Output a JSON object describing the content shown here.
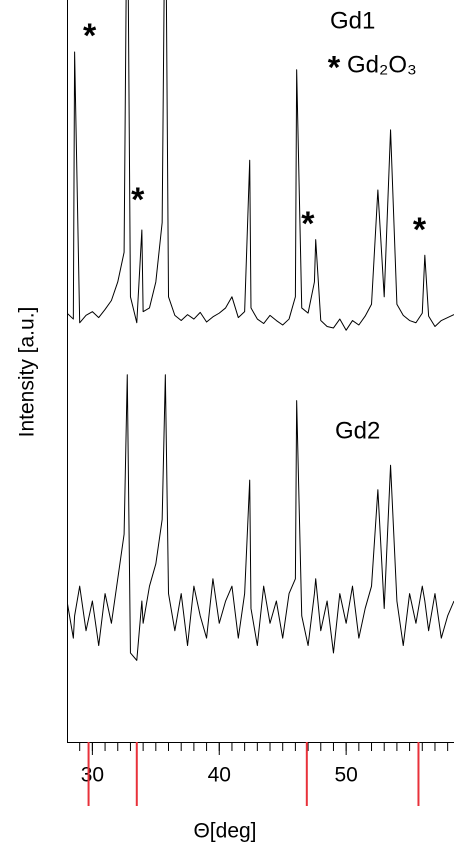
{
  "chart_data": {
    "type": "line",
    "xlabel": "Θ[deg]",
    "ylabel": "Intensity [a.u.]",
    "xlim": [
      28.0,
      58.5
    ],
    "ylim": [
      0,
      100
    ],
    "xticks": [
      30,
      40,
      50
    ],
    "xminorticks": [
      29,
      30,
      31,
      32,
      33,
      34,
      35,
      36,
      37,
      38,
      39,
      40,
      41,
      42,
      43,
      44,
      45,
      46,
      47,
      48,
      49,
      50,
      51,
      52,
      53,
      54,
      55,
      56,
      57,
      58
    ],
    "x": [
      28.0,
      28.5,
      28.6,
      29.0,
      29.5,
      30.0,
      30.5,
      31.0,
      31.5,
      32.0,
      32.5,
      32.75,
      33.0,
      33.5,
      33.9,
      34.0,
      34.5,
      35.0,
      35.5,
      35.75,
      36.0,
      36.5,
      37.0,
      37.5,
      38.0,
      38.5,
      39.0,
      39.5,
      40.0,
      40.5,
      41.0,
      41.5,
      42.0,
      42.4,
      42.5,
      43.0,
      43.5,
      44.0,
      44.5,
      45.0,
      45.5,
      46.0,
      46.1,
      46.5,
      47.0,
      47.5,
      47.6,
      48.0,
      48.5,
      49.0,
      49.5,
      50.0,
      50.5,
      51.0,
      51.5,
      52.0,
      52.5,
      53.0,
      53.5,
      54.0,
      54.5,
      55.0,
      55.5,
      56.0,
      56.2,
      56.5,
      57.0,
      57.5,
      58.0,
      58.5
    ],
    "series": [
      {
        "name": "Gd1",
        "color": "#000000",
        "values": [
          57.8,
          57.0,
          93,
          56.5,
          57.5,
          58.0,
          57.2,
          58.3,
          59.5,
          62,
          66,
          120,
          60,
          56.5,
          69,
          58,
          58.5,
          62,
          70,
          120,
          60,
          57.5,
          56.8,
          57.6,
          57.0,
          57.9,
          56.6,
          57.3,
          57.8,
          58.5,
          60,
          57.2,
          58,
          78.4,
          58.5,
          57.0,
          56.4,
          57.5,
          56.8,
          56.2,
          57,
          60,
          90.6,
          58.5,
          57.8,
          62,
          67.7,
          56.8,
          56.0,
          55.8,
          57.0,
          55.5,
          56.8,
          56.2,
          57.4,
          59,
          74.4,
          60,
          82.5,
          59,
          57.5,
          56.8,
          56.5,
          57.8,
          65.6,
          57.4,
          56.0,
          56.8,
          57.2,
          57.6
        ]
      },
      {
        "name": "Gd2",
        "color": "#000000",
        "values": [
          19,
          14,
          17,
          21,
          15,
          19,
          13,
          20,
          16,
          22,
          28,
          49.5,
          12,
          11,
          19,
          16,
          21,
          24,
          30,
          49.5,
          20,
          15,
          20,
          13,
          21,
          17,
          14,
          22,
          16,
          19,
          21,
          14,
          20,
          35.3,
          18,
          13,
          21,
          16,
          19,
          14,
          20,
          22,
          46,
          17,
          13,
          20,
          22,
          15,
          19,
          12,
          20,
          16,
          21,
          14,
          18,
          21,
          34,
          18,
          37.3,
          19,
          13,
          20,
          16,
          21,
          19,
          15,
          20,
          14,
          17,
          19
        ]
      }
    ],
    "marker_symbol": "*",
    "marker_label": "Gd₂O₃",
    "marker_color": "#e8313a",
    "reference_lines": [
      29.7,
      33.5,
      46.9,
      55.7
    ]
  }
}
